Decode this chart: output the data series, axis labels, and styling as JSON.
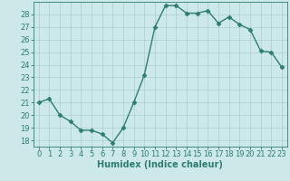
{
  "x": [
    0,
    1,
    2,
    3,
    4,
    5,
    6,
    7,
    8,
    9,
    10,
    11,
    12,
    13,
    14,
    15,
    16,
    17,
    18,
    19,
    20,
    21,
    22,
    23
  ],
  "y": [
    21.0,
    21.3,
    20.0,
    19.5,
    18.8,
    18.8,
    18.5,
    17.8,
    19.0,
    21.0,
    23.2,
    27.0,
    28.7,
    28.7,
    28.1,
    28.1,
    28.3,
    27.3,
    27.8,
    27.2,
    26.8,
    25.1,
    25.0,
    23.8
  ],
  "line_color": "#2e7d6e",
  "marker": "D",
  "markersize": 2.5,
  "linewidth": 1.0,
  "xlim": [
    -0.5,
    23.5
  ],
  "ylim": [
    17.5,
    29.0
  ],
  "yticks": [
    18,
    19,
    20,
    21,
    22,
    23,
    24,
    25,
    26,
    27,
    28
  ],
  "xticks": [
    0,
    1,
    2,
    3,
    4,
    5,
    6,
    7,
    8,
    9,
    10,
    11,
    12,
    13,
    14,
    15,
    16,
    17,
    18,
    19,
    20,
    21,
    22,
    23
  ],
  "xlabel": "Humidex (Indice chaleur)",
  "xlabel_fontsize": 7,
  "tick_fontsize": 6,
  "bg_color": "#cce8e8",
  "grid_color": "#aacfcf",
  "line_teal": "#2e7d6e"
}
